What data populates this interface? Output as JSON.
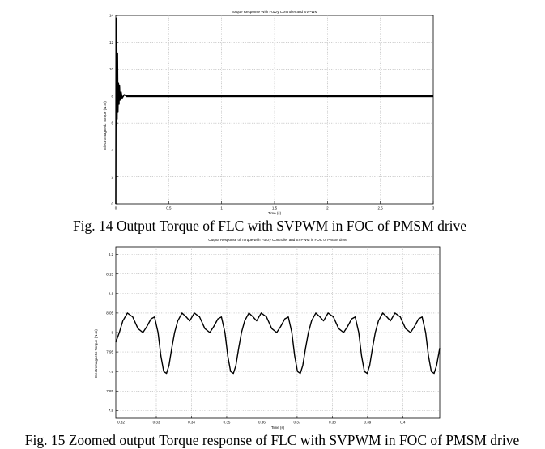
{
  "chart_data": [
    {
      "type": "line",
      "title": "Torque Response With Fuzzy Controller and SVPWM",
      "xlabel": "Time (s)",
      "ylabel": "Electromagnetic Torque (N.m)",
      "xlim": [
        0,
        3
      ],
      "ylim": [
        0,
        14
      ],
      "x_ticks": [
        0,
        0.5,
        1,
        1.5,
        2,
        2.5,
        3
      ],
      "x_tick_labels": [
        "0",
        "0.5",
        "1",
        "1.5",
        "2",
        "2.5",
        "3"
      ],
      "y_ticks": [
        0,
        2,
        4,
        6,
        8,
        10,
        12,
        14
      ],
      "y_tick_labels": [
        "0",
        "2",
        "4",
        "6",
        "8",
        "10",
        "12",
        "14"
      ],
      "grid": true,
      "legend": "none",
      "series": [
        {
          "x": [
            0,
            0.003,
            0.006,
            0.009,
            0.012,
            0.016,
            0.02,
            0.025,
            0.03,
            0.035,
            0.04,
            0.05,
            0.06,
            0.08,
            0.1,
            0.5,
            1,
            1.5,
            2,
            2.5,
            3
          ],
          "y": [
            0,
            13.8,
            5.8,
            12.1,
            6.3,
            11.2,
            6.8,
            9.0,
            7.4,
            8.8,
            7.7,
            8.3,
            7.85,
            8.1,
            8.0,
            8.0,
            8.0,
            8.0,
            8.0,
            8.0,
            8.0
          ],
          "ripple": [
            7.92,
            8.08
          ]
        }
      ]
    },
    {
      "type": "line",
      "title": "Output Response of Torque with Fuzzy Controller and SVPWM in FOC of PMSM drive",
      "xlabel": "Time (s)",
      "ylabel": "Electromagnetic Torque (N.m)",
      "xlim": [
        0.3185,
        0.4105
      ],
      "ylim": [
        7.78,
        8.22
      ],
      "x_ticks": [
        0.32,
        0.33,
        0.34,
        0.35,
        0.36,
        0.37,
        0.38,
        0.39,
        0.4
      ],
      "x_tick_labels": [
        "0.32",
        "0.33",
        "0.34",
        "0.35",
        "0.36",
        "0.37",
        "0.38",
        "0.39",
        "0.4"
      ],
      "y_ticks": [
        7.8,
        7.85,
        7.9,
        7.95,
        8,
        8.05,
        8.1,
        8.15,
        8.2
      ],
      "y_tick_labels": [
        "7.8",
        "7.85",
        "7.9",
        "7.95",
        "8",
        "8.05",
        "8.1",
        "8.15",
        "8.2"
      ],
      "grid": true,
      "legend": "none",
      "series": [
        {
          "x": [
            0.3185,
            0.3195,
            0.3205,
            0.3218,
            0.3233,
            0.3248,
            0.3262,
            0.3273,
            0.3285,
            0.3295,
            0.3305,
            0.3313,
            0.3321,
            0.3329,
            0.3336,
            0.3344,
            0.3352,
            0.3361,
            0.3373,
            0.3385,
            0.3395,
            0.3408,
            0.3423,
            0.3438,
            0.3452,
            0.3463,
            0.3475,
            0.3485,
            0.3495,
            0.3503,
            0.3511,
            0.3519,
            0.3526,
            0.3534,
            0.3542,
            0.3551,
            0.3563,
            0.3575,
            0.3585,
            0.3598,
            0.3613,
            0.3628,
            0.3642,
            0.3653,
            0.3665,
            0.3675,
            0.3685,
            0.3693,
            0.3701,
            0.3709,
            0.3716,
            0.3724,
            0.3732,
            0.3741,
            0.3753,
            0.3765,
            0.3775,
            0.3788,
            0.3803,
            0.3818,
            0.3832,
            0.3843,
            0.3855,
            0.3865,
            0.3875,
            0.3883,
            0.3891,
            0.3899,
            0.3906,
            0.3914,
            0.3922,
            0.3931,
            0.3943,
            0.3955,
            0.3965,
            0.3978,
            0.3993,
            0.4008,
            0.4022,
            0.4033,
            0.4045,
            0.4055,
            0.4065,
            0.4073,
            0.4081,
            0.4089,
            0.4096,
            0.4105
          ],
          "y": [
            7.975,
            8.0,
            8.03,
            8.05,
            8.04,
            8.01,
            8.0,
            8.015,
            8.035,
            8.04,
            8.0,
            7.94,
            7.9,
            7.895,
            7.915,
            7.96,
            8.0,
            8.03,
            8.05,
            8.04,
            8.03,
            8.05,
            8.04,
            8.01,
            8.0,
            8.015,
            8.035,
            8.04,
            8.0,
            7.94,
            7.9,
            7.895,
            7.915,
            7.96,
            8.0,
            8.03,
            8.05,
            8.04,
            8.03,
            8.05,
            8.04,
            8.01,
            8.0,
            8.015,
            8.035,
            8.04,
            8.0,
            7.94,
            7.9,
            7.895,
            7.915,
            7.96,
            8.0,
            8.03,
            8.05,
            8.04,
            8.03,
            8.05,
            8.04,
            8.01,
            8.0,
            8.015,
            8.035,
            8.04,
            8.0,
            7.94,
            7.9,
            7.895,
            7.915,
            7.96,
            8.0,
            8.03,
            8.05,
            8.04,
            8.03,
            8.05,
            8.04,
            8.01,
            8.0,
            8.015,
            8.035,
            8.04,
            8.0,
            7.94,
            7.9,
            7.895,
            7.915,
            7.96
          ]
        }
      ]
    }
  ],
  "captions": {
    "fig14": "Fig. 14 Output Torque of FLC with SVPWM in FOC of PMSM drive",
    "fig15": "Fig. 15 Zoomed output Torque response of FLC with SVPWM in FOC of PMSM drive"
  }
}
